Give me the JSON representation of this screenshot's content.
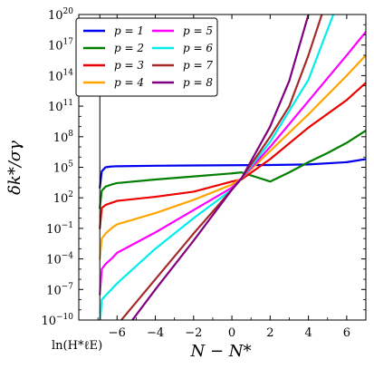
{
  "chart_data": {
    "type": "line",
    "xlabel": "N − N*",
    "ylabel": "δk*/σγ",
    "xlim": [
      -8.0,
      7.0
    ],
    "ylim_log10": [
      -10,
      20
    ],
    "yscale": "log",
    "x_ticks": [
      -6,
      -4,
      -2,
      0,
      2,
      4,
      6
    ],
    "x_tick_labels": [
      "−6",
      "−4",
      "−2",
      "0",
      "2",
      "4",
      "6"
    ],
    "y_ticks_log10": [
      -10,
      -7,
      -4,
      -1,
      2,
      5,
      8,
      11,
      14,
      17,
      20
    ],
    "y_tick_labels": [
      {
        "base": "10",
        "exp": "−10"
      },
      {
        "base": "10",
        "exp": "−7"
      },
      {
        "base": "10",
        "exp": "−4"
      },
      {
        "base": "10",
        "exp": "−1"
      },
      {
        "base": "10",
        "exp": "2"
      },
      {
        "base": "10",
        "exp": "5"
      },
      {
        "base": "10",
        "exp": "8"
      },
      {
        "base": "10",
        "exp": "11"
      },
      {
        "base": "10",
        "exp": "14"
      },
      {
        "base": "10",
        "exp": "17"
      },
      {
        "base": "10",
        "exp": "20"
      }
    ],
    "annotation": {
      "text": "ln(H*ℓE)",
      "x": -6.9
    },
    "legend_position": "upper-left",
    "grid": false,
    "series": [
      {
        "name": "p = 1",
        "color": "#0000ee",
        "x": [
          -6.9,
          -6.8,
          -6.6,
          -6.3,
          -6.0,
          -4.0,
          -2.0,
          0.0,
          2.0,
          4.0,
          6.0,
          7.0
        ],
        "log10_y": [
          3.0,
          4.6,
          5.0,
          5.08,
          5.1,
          5.15,
          5.18,
          5.2,
          5.22,
          5.28,
          5.5,
          5.8
        ]
      },
      {
        "name": "p = 2",
        "color": "#008000",
        "x": [
          -6.9,
          -6.8,
          -6.6,
          -6.3,
          -6.0,
          -4.0,
          -2.0,
          0.0,
          0.5,
          2.0,
          3.0,
          4.0,
          5.0,
          6.0,
          7.0
        ],
        "log10_y": [
          1.0,
          2.7,
          3.1,
          3.3,
          3.45,
          3.8,
          4.1,
          4.4,
          4.5,
          3.6,
          4.5,
          5.5,
          6.4,
          7.4,
          8.6
        ]
      },
      {
        "name": "p = 3",
        "color": "#ee0000",
        "x": [
          -6.9,
          -6.8,
          -6.6,
          -6.3,
          -6.0,
          -4.0,
          -2.0,
          0.0,
          0.5,
          2.0,
          4.0,
          6.0,
          7.0
        ],
        "log10_y": [
          -1.0,
          1.0,
          1.3,
          1.5,
          1.7,
          2.1,
          2.6,
          3.6,
          3.8,
          5.8,
          8.9,
          11.6,
          13.3
        ]
      },
      {
        "name": "p = 4",
        "color": "#ffa500",
        "x": [
          -6.9,
          -6.8,
          -6.6,
          -6.3,
          -6.0,
          -4.0,
          -2.0,
          0.0,
          0.5,
          2.0,
          4.0,
          6.0,
          7.0
        ],
        "log10_y": [
          -4.0,
          -2.0,
          -1.5,
          -1.0,
          -0.6,
          0.5,
          1.8,
          3.3,
          3.9,
          6.6,
          10.2,
          14.0,
          16.0
        ]
      },
      {
        "name": "p = 5",
        "color": "#ff00ff",
        "x": [
          -6.9,
          -6.8,
          -6.6,
          -6.3,
          -6.0,
          -4.0,
          -2.0,
          0.0,
          0.5,
          2.0,
          4.0,
          6.0,
          7.0
        ],
        "log10_y": [
          -7.5,
          -5.0,
          -4.5,
          -4.0,
          -3.4,
          -1.4,
          0.8,
          3.0,
          3.9,
          7.0,
          11.5,
          16.0,
          18.3
        ]
      },
      {
        "name": "p = 6",
        "color": "#00eeee",
        "x": [
          -6.9,
          -6.8,
          -6.6,
          -6.0,
          -4.0,
          -2.0,
          0.0,
          0.5,
          2.0,
          4.0,
          5.3
        ],
        "log10_y": [
          -10.5,
          -8.0,
          -7.6,
          -6.4,
          -3.0,
          0.0,
          2.8,
          3.9,
          7.5,
          13.6,
          20.0
        ]
      },
      {
        "name": "p = 7",
        "color": "#a52a2a",
        "x": [
          -6.0,
          -4.0,
          -2.0,
          0.0,
          0.5,
          2.0,
          3.0,
          4.0,
          4.7
        ],
        "log10_y": [
          -10.5,
          -6.0,
          -1.5,
          2.8,
          3.9,
          8.0,
          11.0,
          16.0,
          20.0
        ]
      },
      {
        "name": "p = 8",
        "color": "#800080",
        "x": [
          -5.4,
          -4.0,
          -2.0,
          0.0,
          0.5,
          2.0,
          3.0,
          4.0
        ],
        "log10_y": [
          -10.5,
          -7.0,
          -2.2,
          2.8,
          3.9,
          9.0,
          13.5,
          20.0
        ]
      }
    ]
  }
}
